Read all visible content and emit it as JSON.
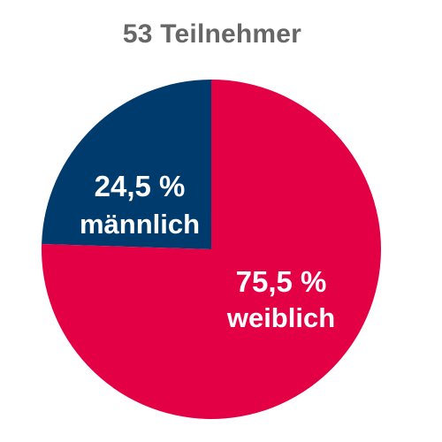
{
  "chart_data": {
    "type": "pie",
    "title": "53 Teilnehmer",
    "slices": [
      {
        "label": "männlich",
        "value": 24.5,
        "value_text": "24,5 %",
        "color": "#003B6D"
      },
      {
        "label": "weiblich",
        "value": 75.5,
        "value_text": "75,5 %",
        "color": "#E30045"
      }
    ]
  }
}
